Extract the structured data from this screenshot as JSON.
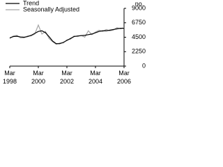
{
  "chart_data": {
    "type": "line",
    "unit_label": "no.",
    "categories": [
      "Mar 1998",
      null,
      null,
      null,
      null,
      null,
      null,
      null,
      "Mar 2000",
      null,
      null,
      null,
      null,
      null,
      null,
      null,
      "Mar 2002",
      null,
      null,
      null,
      null,
      null,
      null,
      null,
      "Mar 2004",
      null,
      null,
      null,
      null,
      null,
      null,
      null,
      "Mar 2006"
    ],
    "series": [
      {
        "name": "Trend",
        "color": "#000000",
        "values": [
          4400,
          4600,
          4650,
          4550,
          4500,
          4600,
          4800,
          5100,
          5400,
          5500,
          5200,
          4600,
          3900,
          3500,
          3500,
          3700,
          4000,
          4300,
          4600,
          4700,
          4750,
          4800,
          4900,
          5000,
          5200,
          5400,
          5500,
          5500,
          5600,
          5700,
          5800,
          5900,
          5900
        ]
      },
      {
        "name": "Seasonally Adjusted",
        "color": "#a6a6a6",
        "values": [
          4300,
          4700,
          4800,
          4400,
          4400,
          4700,
          4700,
          5000,
          6400,
          5000,
          5400,
          4300,
          3800,
          3400,
          3600,
          3600,
          4100,
          4200,
          4700,
          4600,
          4800,
          4500,
          5500,
          4900,
          5300,
          5600,
          5400,
          5700,
          5500,
          5600,
          6000,
          5800,
          6000
        ]
      }
    ],
    "ylim": [
      0,
      9000
    ],
    "yticks": [
      0,
      2250,
      4500,
      6750,
      9000
    ],
    "legend": "top-left"
  }
}
